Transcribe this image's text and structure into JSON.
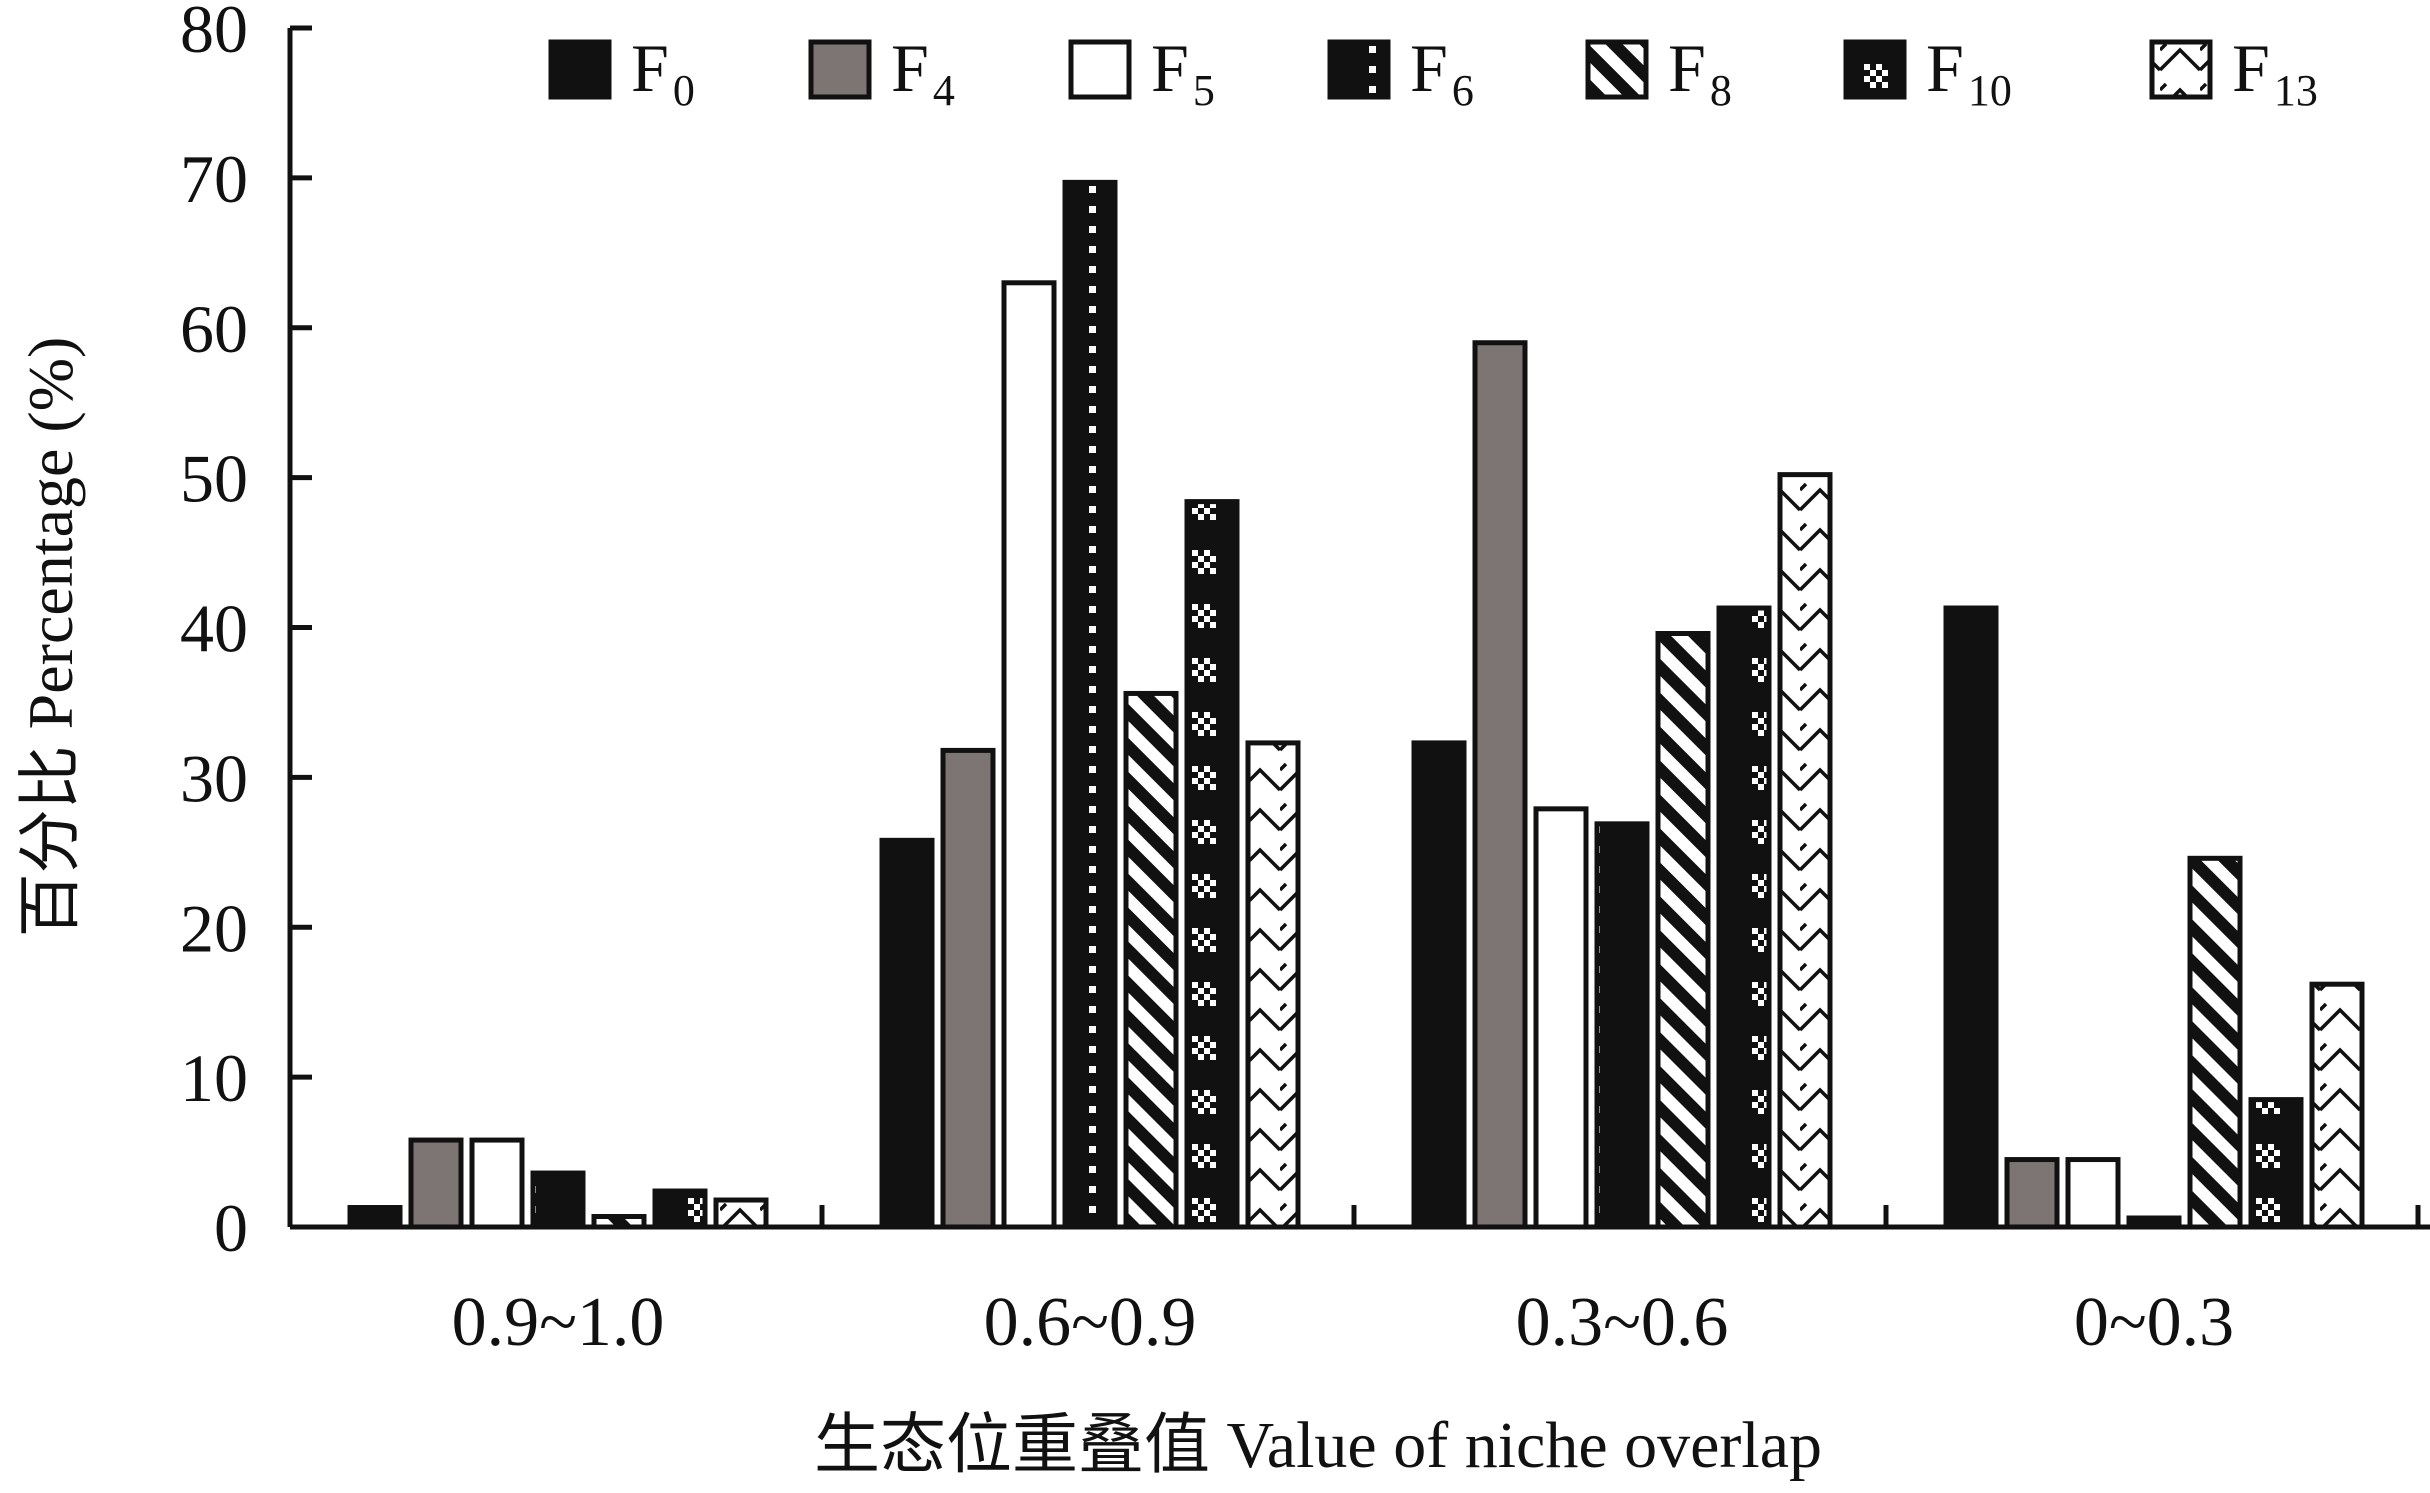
{
  "chart_data": {
    "type": "bar",
    "xlabel": "生态位重叠值 Value of niche overlap",
    "ylabel": "百分比 Percentage (%)",
    "ylim": [
      0,
      80
    ],
    "yticks": [
      "0",
      "10",
      "20",
      "30",
      "40",
      "50",
      "60",
      "70",
      "80"
    ],
    "categories": [
      "0.9~1.0",
      "0.6~0.9",
      "0.3~0.6",
      "0~0.3"
    ],
    "legend_position": "top-right",
    "series": [
      {
        "name": "F",
        "sub": "0",
        "pattern": "solid",
        "values": [
          1.3,
          25.8,
          32.3,
          41.3
        ]
      },
      {
        "name": "F",
        "sub": "4",
        "pattern": "gray",
        "values": [
          5.8,
          31.8,
          59.0,
          4.5
        ]
      },
      {
        "name": "F",
        "sub": "5",
        "pattern": "white",
        "values": [
          5.8,
          63.0,
          27.9,
          4.5
        ]
      },
      {
        "name": "F",
        "sub": "6",
        "pattern": "dotted",
        "values": [
          3.6,
          69.7,
          26.9,
          0.6
        ]
      },
      {
        "name": "F",
        "sub": "8",
        "pattern": "diagonal",
        "values": [
          0.7,
          35.6,
          39.6,
          24.6
        ]
      },
      {
        "name": "F",
        "sub": "10",
        "pattern": "checker",
        "values": [
          2.4,
          48.4,
          41.3,
          8.5
        ]
      },
      {
        "name": "F",
        "sub": "13",
        "pattern": "zigzag",
        "values": [
          1.8,
          32.3,
          50.2,
          16.2
        ]
      }
    ]
  }
}
